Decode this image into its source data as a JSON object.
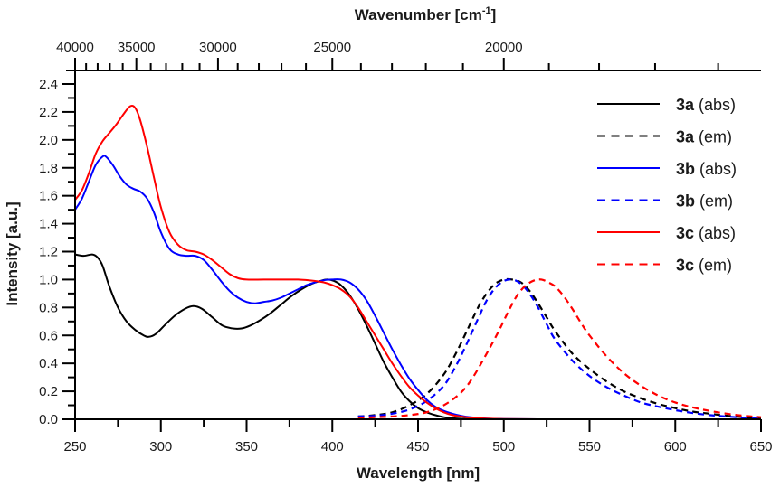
{
  "chart_data": {
    "type": "line",
    "title": "",
    "xlabel": "Wavelength [nm]",
    "ylabel": "Intensity [a.u.]",
    "x2label": "Wavenumber [cm",
    "x2label_sup": "-1",
    "x2label_end": "]",
    "xlim": [
      250,
      650
    ],
    "ylim": [
      0.0,
      2.5
    ],
    "x_ticks": [
      250,
      300,
      350,
      400,
      450,
      500,
      550,
      600,
      650
    ],
    "x_tick_labels": [
      "250",
      "300",
      "350",
      "400",
      "450",
      "500",
      "550",
      "600",
      "650"
    ],
    "y_ticks": [
      0.0,
      0.2,
      0.4,
      0.6,
      0.8,
      1.0,
      1.2,
      1.4,
      1.6,
      1.8,
      2.0,
      2.2,
      2.4
    ],
    "y_tick_labels": [
      "0.0",
      "0.2",
      "0.4",
      "0.6",
      "0.8",
      "1.0",
      "1.2",
      "1.4",
      "1.6",
      "1.8",
      "2.0",
      "2.2",
      "2.4"
    ],
    "x2_ticks": [
      40000,
      35000,
      30000,
      25000,
      20000
    ],
    "x2_tick_labels": [
      "40000",
      "35000",
      "30000",
      "25000",
      "20000"
    ],
    "x2_minor_step": 1000,
    "x2_range": [
      40000,
      15385
    ],
    "grid": false,
    "legend_position": "top-right",
    "series": [
      {
        "name": "3a (abs)",
        "compound": "3a",
        "kind": "(abs)",
        "color": "#000000",
        "dashed": false,
        "x": [
          250,
          255,
          260,
          263,
          266,
          270,
          275,
          280,
          285,
          290,
          293,
          297,
          302,
          308,
          314,
          319,
          324,
          330,
          336,
          342,
          347,
          352,
          358,
          364,
          370,
          376,
          382,
          388,
          393,
          397,
          401,
          405,
          410,
          415,
          420,
          425,
          430,
          435,
          440,
          445,
          450,
          455,
          460,
          465,
          470,
          475,
          480,
          490,
          500,
          520,
          550,
          600,
          650
        ],
        "y": [
          1.18,
          1.17,
          1.18,
          1.16,
          1.1,
          0.95,
          0.8,
          0.7,
          0.64,
          0.6,
          0.59,
          0.61,
          0.67,
          0.74,
          0.79,
          0.81,
          0.79,
          0.73,
          0.67,
          0.65,
          0.65,
          0.67,
          0.71,
          0.76,
          0.82,
          0.88,
          0.93,
          0.97,
          0.99,
          1.0,
          0.99,
          0.96,
          0.89,
          0.79,
          0.67,
          0.54,
          0.41,
          0.3,
          0.2,
          0.13,
          0.08,
          0.05,
          0.03,
          0.015,
          0.008,
          0.004,
          0.002,
          0.001,
          0.0,
          0.0,
          0.0,
          0.0,
          0.0
        ]
      },
      {
        "name": "3a (em)",
        "compound": "3a",
        "kind": "(em)",
        "color": "#000000",
        "dashed": true,
        "x": [
          415,
          425,
          435,
          445,
          455,
          465,
          472,
          478,
          485,
          490,
          495,
          500,
          505,
          510,
          515,
          520,
          525,
          530,
          540,
          550,
          560,
          570,
          580,
          590,
          600,
          610,
          620,
          630,
          640,
          650
        ],
        "y": [
          0.02,
          0.03,
          0.05,
          0.1,
          0.18,
          0.32,
          0.47,
          0.62,
          0.8,
          0.9,
          0.97,
          1.0,
          1.0,
          0.98,
          0.92,
          0.83,
          0.73,
          0.63,
          0.47,
          0.36,
          0.27,
          0.2,
          0.15,
          0.11,
          0.08,
          0.055,
          0.04,
          0.025,
          0.015,
          0.01
        ]
      },
      {
        "name": "3b (abs)",
        "compound": "3b",
        "kind": "(abs)",
        "color": "#0000ff",
        "dashed": false,
        "x": [
          250,
          254,
          258,
          262,
          266,
          268,
          272,
          276,
          280,
          284,
          288,
          292,
          296,
          300,
          305,
          310,
          315,
          320,
          325,
          330,
          335,
          340,
          345,
          350,
          355,
          360,
          365,
          370,
          375,
          380,
          385,
          390,
          395,
          400,
          405,
          410,
          415,
          420,
          425,
          430,
          435,
          440,
          445,
          450,
          455,
          460,
          465,
          470,
          475,
          480,
          490,
          500,
          520,
          550,
          600,
          650
        ],
        "y": [
          1.5,
          1.58,
          1.7,
          1.82,
          1.88,
          1.88,
          1.82,
          1.74,
          1.68,
          1.65,
          1.63,
          1.58,
          1.48,
          1.34,
          1.22,
          1.18,
          1.17,
          1.17,
          1.14,
          1.07,
          0.99,
          0.92,
          0.87,
          0.84,
          0.83,
          0.84,
          0.85,
          0.87,
          0.9,
          0.93,
          0.96,
          0.98,
          0.995,
          1.0,
          1.0,
          0.98,
          0.93,
          0.85,
          0.74,
          0.62,
          0.5,
          0.39,
          0.29,
          0.21,
          0.14,
          0.09,
          0.06,
          0.04,
          0.025,
          0.015,
          0.005,
          0.002,
          0.0,
          0.0,
          0.0,
          0.0
        ]
      },
      {
        "name": "3b (em)",
        "compound": "3b",
        "kind": "(em)",
        "color": "#0000ff",
        "dashed": true,
        "x": [
          415,
          425,
          435,
          445,
          455,
          465,
          472,
          478,
          485,
          490,
          495,
          500,
          505,
          510,
          515,
          520,
          525,
          530,
          540,
          550,
          560,
          570,
          580,
          590,
          600,
          610,
          620,
          630,
          640,
          650
        ],
        "y": [
          0.02,
          0.025,
          0.04,
          0.07,
          0.13,
          0.24,
          0.38,
          0.53,
          0.72,
          0.85,
          0.94,
          0.99,
          1.0,
          0.97,
          0.9,
          0.8,
          0.68,
          0.57,
          0.42,
          0.31,
          0.23,
          0.17,
          0.12,
          0.09,
          0.065,
          0.045,
          0.03,
          0.02,
          0.012,
          0.008
        ]
      },
      {
        "name": "3c (abs)",
        "compound": "3c",
        "kind": "(abs)",
        "color": "#ff0000",
        "dashed": false,
        "x": [
          250,
          254,
          258,
          262,
          266,
          270,
          274,
          278,
          282,
          285,
          288,
          292,
          296,
          300,
          305,
          310,
          315,
          320,
          325,
          330,
          335,
          340,
          345,
          350,
          360,
          370,
          380,
          390,
          395,
          400,
          405,
          410,
          415,
          420,
          425,
          430,
          435,
          440,
          445,
          450,
          455,
          460,
          465,
          470,
          475,
          480,
          490,
          500,
          520,
          550,
          600,
          650
        ],
        "y": [
          1.57,
          1.64,
          1.76,
          1.9,
          1.99,
          2.05,
          2.11,
          2.18,
          2.24,
          2.23,
          2.14,
          1.95,
          1.73,
          1.52,
          1.34,
          1.25,
          1.21,
          1.2,
          1.18,
          1.14,
          1.09,
          1.04,
          1.01,
          1.0,
          1.0,
          1.0,
          1.0,
          0.99,
          0.98,
          0.96,
          0.93,
          0.88,
          0.8,
          0.7,
          0.6,
          0.5,
          0.4,
          0.31,
          0.23,
          0.17,
          0.12,
          0.08,
          0.05,
          0.03,
          0.02,
          0.012,
          0.005,
          0.002,
          0.0,
          0.0,
          0.0,
          0.0
        ]
      },
      {
        "name": "3c (em)",
        "compound": "3c",
        "kind": "(em)",
        "color": "#ff0000",
        "dashed": true,
        "x": [
          415,
          425,
          435,
          445,
          455,
          465,
          475,
          482,
          490,
          497,
          503,
          508,
          513,
          518,
          522,
          526,
          530,
          535,
          540,
          545,
          550,
          560,
          570,
          580,
          590,
          600,
          610,
          620,
          630,
          640,
          650
        ],
        "y": [
          0.01,
          0.015,
          0.02,
          0.03,
          0.05,
          0.1,
          0.19,
          0.3,
          0.47,
          0.63,
          0.78,
          0.89,
          0.96,
          0.995,
          1.0,
          0.98,
          0.95,
          0.88,
          0.79,
          0.69,
          0.6,
          0.45,
          0.33,
          0.24,
          0.17,
          0.12,
          0.085,
          0.06,
          0.04,
          0.025,
          0.015
        ]
      }
    ]
  }
}
